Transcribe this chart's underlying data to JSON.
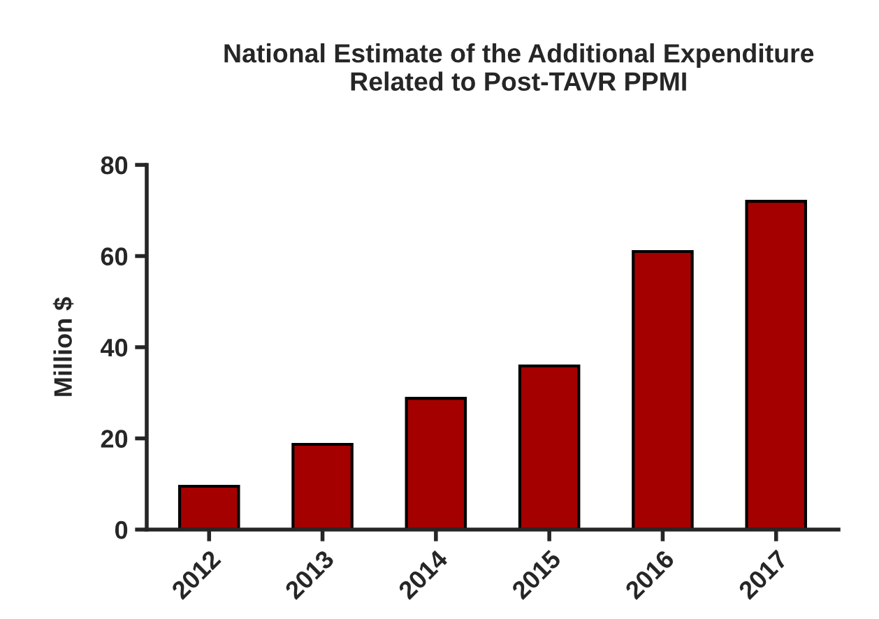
{
  "chart_data": {
    "type": "bar",
    "title": "National Estimate of the Additional Expenditure\nRelated to Post-TAVR PPMI",
    "ylabel": "Million $",
    "categories": [
      "2012",
      "2013",
      "2014",
      "2015",
      "2016",
      "2017"
    ],
    "values": [
      9.5,
      18.7,
      28.8,
      35.9,
      61,
      72
    ],
    "color": "#a50000",
    "ylim": [
      0,
      80
    ],
    "yticks": [
      0,
      20,
      40,
      60,
      80
    ],
    "grid": false,
    "legend": false
  }
}
